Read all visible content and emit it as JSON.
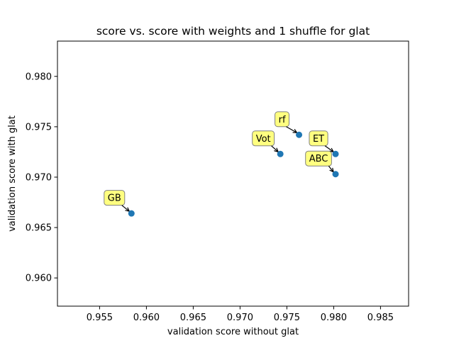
{
  "chart_data": {
    "type": "scatter",
    "title": "score vs. score with weights and 1 shuffle for glat",
    "xlabel": "validation score without glat",
    "ylabel": "validation score with glat",
    "xlim": [
      0.9505,
      0.988
    ],
    "ylim": [
      0.9572,
      0.9835
    ],
    "xticks": [
      0.955,
      0.96,
      0.965,
      0.97,
      0.975,
      0.98,
      0.985
    ],
    "xtick_labels": [
      "0.955",
      "0.960",
      "0.965",
      "0.970",
      "0.975",
      "0.980",
      "0.985"
    ],
    "yticks": [
      0.96,
      0.965,
      0.97,
      0.975,
      0.98
    ],
    "ytick_labels": [
      "0.960",
      "0.965",
      "0.970",
      "0.975",
      "0.980"
    ],
    "grid": false,
    "points": [
      {
        "label": "GB",
        "x": 0.9584,
        "y": 0.9664
      },
      {
        "label": "Vot",
        "x": 0.9743,
        "y": 0.9723
      },
      {
        "label": "rf",
        "x": 0.9763,
        "y": 0.9742
      },
      {
        "label": "ET",
        "x": 0.9802,
        "y": 0.9723
      },
      {
        "label": "ABC",
        "x": 0.9802,
        "y": 0.9703
      }
    ],
    "marker_color": "#1f77b4",
    "annotation_box_color": "#ffff80",
    "annotation_edge_color": "#808080"
  }
}
